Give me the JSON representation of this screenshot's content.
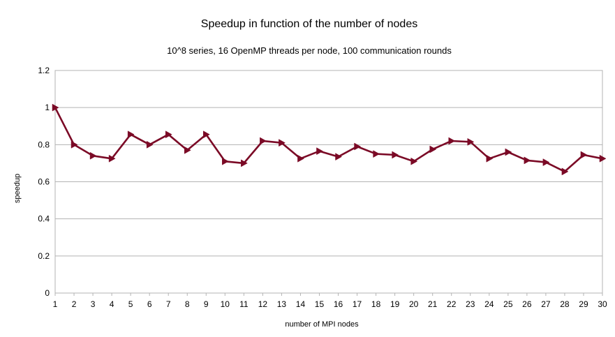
{
  "chart_data": {
    "type": "line",
    "title": "Speedup in function of the number of nodes",
    "subtitle": "10^8 series, 16 OpenMP threads per node, 100 communication rounds",
    "xlabel": "number of MPI nodes",
    "ylabel": "speedup",
    "x": [
      1,
      2,
      3,
      4,
      5,
      6,
      7,
      8,
      9,
      10,
      11,
      12,
      13,
      14,
      15,
      16,
      17,
      18,
      19,
      20,
      21,
      22,
      23,
      24,
      25,
      26,
      27,
      28,
      29,
      30
    ],
    "series": [
      {
        "values": [
          1.0,
          0.8,
          0.74,
          0.725,
          0.855,
          0.8,
          0.855,
          0.77,
          0.855,
          0.71,
          0.7,
          0.82,
          0.81,
          0.725,
          0.765,
          0.735,
          0.79,
          0.75,
          0.745,
          0.71,
          0.775,
          0.82,
          0.815,
          0.725,
          0.76,
          0.715,
          0.705,
          0.655,
          0.745,
          0.725
        ],
        "color": "#7b0a26",
        "marker": "triangle-right"
      }
    ],
    "ylim": [
      0,
      1.2
    ],
    "yticks": [
      "0",
      "0.2",
      "0.4",
      "0.6",
      "0.8",
      "1",
      "1.2"
    ],
    "grid": true,
    "legend": "none"
  }
}
